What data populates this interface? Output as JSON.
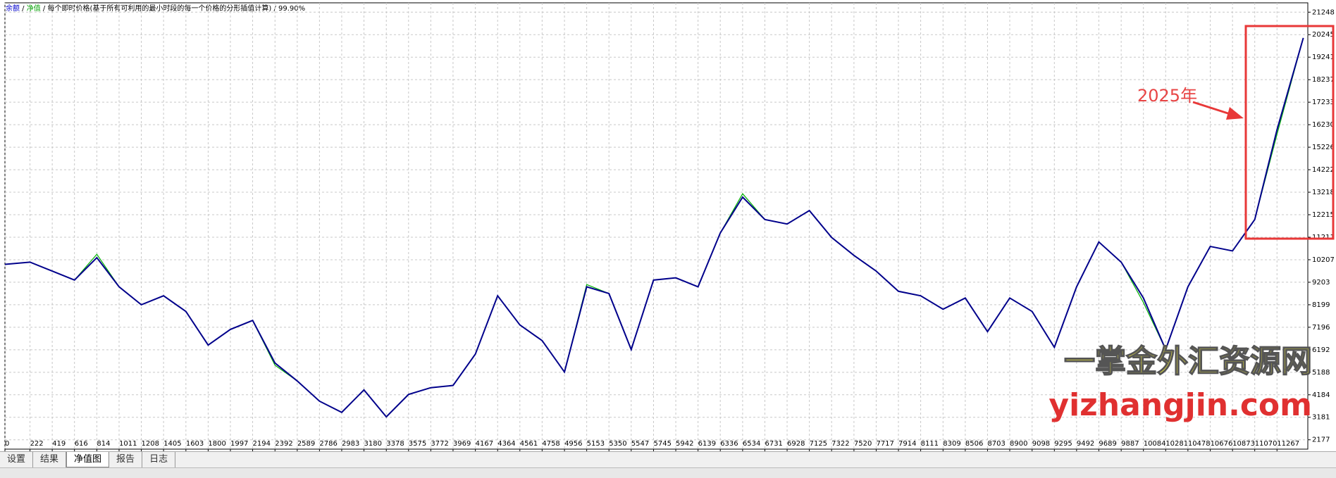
{
  "header": {
    "mode": "每个即时价格(基于所有可利用的最小时段的每一个价格的分形插值计算)",
    "quality": "99.90%"
  },
  "chart_data": {
    "type": "line",
    "x": [
      0,
      222,
      419,
      616,
      814,
      1011,
      1208,
      1405,
      1603,
      1800,
      1997,
      2194,
      2392,
      2589,
      2786,
      2983,
      3180,
      3378,
      3575,
      3772,
      3969,
      4167,
      4364,
      4561,
      4758,
      4956,
      5153,
      5350,
      5547,
      5745,
      5942,
      6139,
      6336,
      6534,
      6731,
      6928,
      7125,
      7322,
      7520,
      7717,
      7914,
      8111,
      8309,
      8506,
      8703,
      8900,
      9098,
      9295,
      9492,
      9689,
      9887,
      10084,
      10281,
      10478,
      10676,
      10873,
      11070,
      11267,
      11500
    ],
    "series": [
      {
        "name": "余额",
        "color": "#00008b",
        "values": [
          10000,
          10100,
          9700,
          9300,
          10300,
          9000,
          8200,
          8600,
          7900,
          6400,
          7100,
          7500,
          5600,
          4800,
          3900,
          3400,
          4400,
          3200,
          4200,
          4500,
          4600,
          6000,
          8600,
          7300,
          6600,
          5200,
          9000,
          8700,
          6200,
          9300,
          9400,
          9000,
          11400,
          13000,
          12000,
          11800,
          12400,
          11200,
          10400,
          9700,
          8800,
          8600,
          8000,
          8500,
          7000,
          8500,
          7900,
          6300,
          9000,
          11000,
          10100,
          8500,
          6200,
          9000,
          10800,
          10600,
          12000,
          16000,
          20100
        ]
      },
      {
        "name": "净值",
        "color": "#00b000",
        "values": [
          10000,
          10100,
          9700,
          9300,
          10450,
          9000,
          8200,
          8600,
          7900,
          6400,
          7100,
          7500,
          5500,
          4800,
          3900,
          3400,
          4400,
          3200,
          4200,
          4500,
          4600,
          6000,
          8600,
          7300,
          6600,
          5200,
          9100,
          8700,
          6200,
          9300,
          9400,
          9000,
          11400,
          13150,
          12000,
          11800,
          12400,
          11200,
          10400,
          9700,
          8800,
          8600,
          8000,
          8500,
          7000,
          8500,
          7900,
          6300,
          9000,
          11000,
          10100,
          8300,
          6200,
          9000,
          10800,
          10600,
          12000,
          15800,
          20100
        ]
      }
    ],
    "xlim": [
      0,
      11540
    ],
    "xticks": [
      0,
      222,
      419,
      616,
      814,
      1011,
      1208,
      1405,
      1603,
      1800,
      1997,
      2194,
      2392,
      2589,
      2786,
      2983,
      3180,
      3378,
      3575,
      3772,
      3969,
      4167,
      4364,
      4561,
      4758,
      4956,
      5153,
      5350,
      5547,
      5745,
      5942,
      6139,
      6336,
      6534,
      6731,
      6928,
      7125,
      7322,
      7520,
      7717,
      7914,
      8111,
      8309,
      8506,
      8703,
      8900,
      9098,
      9295,
      9492,
      9689,
      9887,
      10084,
      10281,
      10478,
      10676,
      10873,
      11070,
      11267
    ],
    "ylim": [
      1760,
      21665
    ],
    "yticks": [
      2177,
      3181,
      4184,
      5188,
      6192,
      7196,
      8199,
      9203,
      10207,
      11211,
      12215,
      13218,
      14222,
      15226,
      16230,
      17233,
      18237,
      19241,
      20245,
      21248
    ],
    "grid": true,
    "annotation": "2025年"
  },
  "watermark": {
    "cn": "一掌金外汇资源网",
    "url": "yizhangjin.com"
  },
  "tabs": [
    "设置",
    "结果",
    "净值图",
    "报告",
    "日志"
  ]
}
